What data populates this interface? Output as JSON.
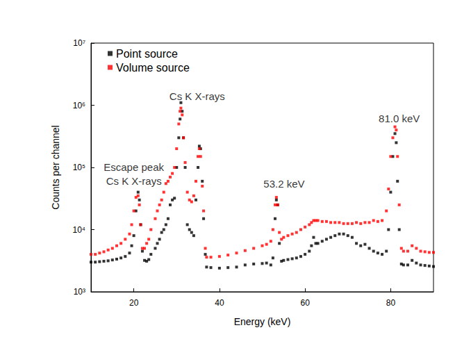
{
  "chart_data": {
    "type": "scatter",
    "x_label": "Energy (keV)",
    "y_label": "Counts per channel",
    "log": "y",
    "grid": false,
    "legend": "top-left",
    "marker": "square",
    "xlim": [
      10,
      90
    ],
    "xticks": [
      20,
      40,
      60,
      80
    ],
    "ylim": [
      1000,
      10000000
    ],
    "yticks": [
      {
        "value": 1000,
        "label": "10³"
      },
      {
        "value": 10000,
        "label": "10⁴"
      },
      {
        "value": 100000,
        "label": "10⁵"
      },
      {
        "value": 1000000,
        "label": "10⁶"
      },
      {
        "value": 10000000,
        "label": "10⁷"
      }
    ],
    "x": [
      10,
      11,
      12,
      13,
      14,
      15,
      16,
      17,
      18,
      19,
      19.5,
      20,
      20.5,
      21,
      21.3,
      21.6,
      22,
      22.5,
      23,
      23.5,
      24,
      25,
      25.5,
      26,
      26.5,
      27,
      27.5,
      28,
      28.5,
      29,
      29.5,
      30,
      30.5,
      30.8,
      31,
      31.3,
      31.6,
      32,
      32.5,
      33,
      33.5,
      34,
      34.5,
      35,
      35.3,
      35.6,
      36,
      36.3,
      36.7,
      37,
      38,
      40,
      42,
      44,
      46,
      48,
      50,
      51,
      52,
      52.5,
      53,
      53.3,
      53.6,
      54,
      54.5,
      55,
      56,
      57,
      58,
      59,
      60,
      61,
      61.5,
      62,
      62.5,
      63,
      64,
      65,
      66,
      67,
      68,
      69,
      70,
      71,
      72,
      73,
      74,
      75,
      76,
      77,
      78,
      79,
      79.5,
      80,
      80.5,
      81,
      81.3,
      81.6,
      82,
      82.5,
      83,
      84,
      85,
      86,
      87,
      88,
      89,
      90
    ],
    "series": [
      {
        "name": "Point source",
        "color": "#000000",
        "values": [
          3000,
          3000,
          3050,
          3100,
          3150,
          3250,
          3350,
          3500,
          3700,
          4200,
          5500,
          8000,
          20000,
          40000,
          30000,
          12000,
          4500,
          3200,
          3100,
          3300,
          4000,
          5000,
          6000,
          7000,
          9000,
          10000,
          12000,
          15000,
          25000,
          30000,
          32000,
          100000,
          300000,
          600000,
          1100000,
          800000,
          300000,
          100000,
          12000,
          10000,
          9000,
          8000,
          30000,
          100000,
          220000,
          200000,
          60000,
          15000,
          4000,
          2500,
          2450,
          2400,
          2450,
          2500,
          2700,
          2800,
          2850,
          2900,
          2700,
          3500,
          15000,
          30000,
          25000,
          6000,
          3100,
          3200,
          3300,
          3400,
          3500,
          3700,
          4000,
          4500,
          5500,
          7500,
          6000,
          6000,
          6500,
          7000,
          7500,
          8000,
          8500,
          8500,
          8000,
          7500,
          6000,
          5500,
          5800,
          5000,
          4500,
          4200,
          4000,
          4500,
          10000,
          40000,
          150000,
          350000,
          250000,
          60000,
          10000,
          2800,
          2700,
          2700,
          3200,
          2900,
          2700,
          2650,
          2600,
          2550
        ]
      },
      {
        "name": "Volume source",
        "color": "#ff0000",
        "values": [
          4000,
          4000,
          4200,
          4400,
          4700,
          5000,
          5500,
          6000,
          7000,
          8500,
          12000,
          20000,
          33000,
          35000,
          25000,
          12000,
          5000,
          5000,
          6000,
          7000,
          10000,
          15000,
          20000,
          25000,
          30000,
          40000,
          55000,
          60000,
          70000,
          80000,
          100000,
          200000,
          500000,
          800000,
          900000,
          700000,
          300000,
          120000,
          40000,
          30000,
          28000,
          35000,
          60000,
          150000,
          200000,
          150000,
          50000,
          20000,
          5000,
          3600,
          3600,
          3700,
          3900,
          4200,
          4600,
          5000,
          5500,
          5800,
          6500,
          10000,
          25000,
          33000,
          25000,
          9000,
          7000,
          7500,
          8000,
          8500,
          9000,
          10000,
          11000,
          12000,
          13000,
          14000,
          14000,
          14000,
          13500,
          13500,
          13000,
          13000,
          13000,
          12500,
          12500,
          12500,
          13000,
          12500,
          13000,
          13000,
          14000,
          13500,
          14000,
          20000,
          45000,
          150000,
          300000,
          450000,
          400000,
          150000,
          25000,
          5000,
          4500,
          4500,
          5500,
          5000,
          4500,
          4400,
          4300,
          4300
        ]
      }
    ],
    "annotations": [
      {
        "text": "Escape peak\nCs K X-rays",
        "x": 20,
        "y": 78000
      },
      {
        "text": "Cs K X-rays",
        "x": 34.8,
        "y": 1400000
      },
      {
        "text": "53.2 keV",
        "x": 55.1,
        "y": 55000
      },
      {
        "text": "81.0 keV",
        "x": 82,
        "y": 620000
      }
    ]
  }
}
